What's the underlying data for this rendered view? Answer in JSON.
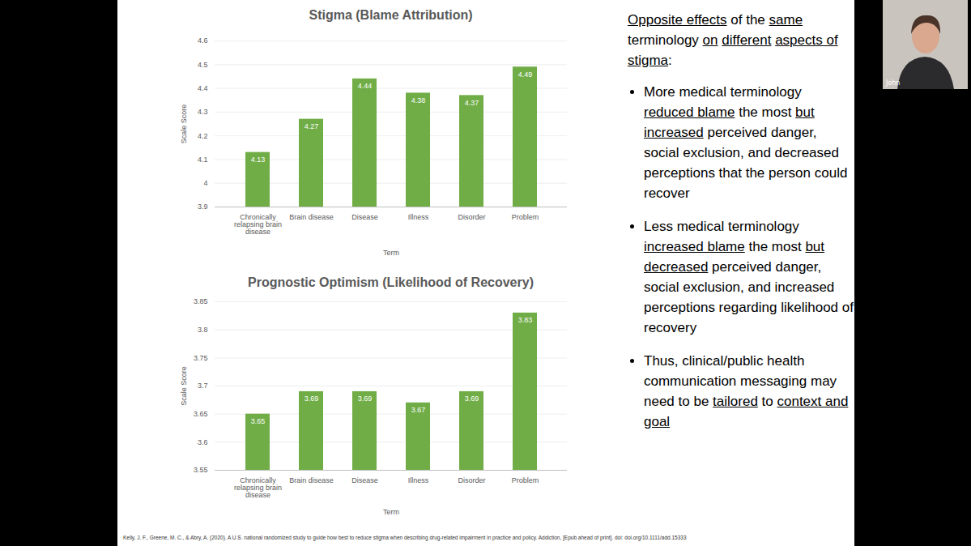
{
  "chart_data": [
    {
      "type": "bar",
      "title": "Stigma (Blame Attribution)",
      "categories": [
        "Chronically relapsing brain disease",
        "Brain disease",
        "Disease",
        "Illness",
        "Disorder",
        "Problem"
      ],
      "values": [
        4.13,
        4.27,
        4.44,
        4.38,
        4.37,
        4.49
      ],
      "color": "#70ad47",
      "ylim": [
        3.9,
        4.6
      ],
      "yticks": [
        3.9,
        4,
        4.1,
        4.2,
        4.3,
        4.4,
        4.5,
        4.6
      ],
      "grid": true,
      "data_labels": true,
      "x_label": "Term",
      "y_label": "Scale Score"
    },
    {
      "type": "bar",
      "title": "Prognostic Optimism (Likelihood of Recovery)",
      "categories": [
        "Chronically relapsing brain disease",
        "Brain disease",
        "Disease",
        "Illness",
        "Disorder",
        "Problem"
      ],
      "values": [
        3.65,
        3.69,
        3.69,
        3.67,
        3.69,
        3.83
      ],
      "color": "#70ad47",
      "ylim": [
        3.55,
        3.85
      ],
      "yticks": [
        3.55,
        3.6,
        3.65,
        3.7,
        3.75,
        3.8,
        3.85
      ],
      "grid": true,
      "data_labels": true,
      "x_label": "Term",
      "y_label": "Scale Score"
    }
  ],
  "text_panel": {
    "heading": {
      "text": "Opposite effects of the same terminology on different aspects of stigma:",
      "underlined": [
        "Opposite effects",
        "same",
        "on",
        "different",
        "aspects of stigma"
      ]
    },
    "bullets": [
      {
        "text": "More medical terminology reduced blame the most but increased perceived danger, social exclusion, and decreased perceptions that the person could recover",
        "underlined": [
          "reduced blame",
          "but increased"
        ]
      },
      {
        "text": "Less medical terminology increased blame the most but decreased perceived danger, social exclusion, and increased perceptions regarding likelihood of recovery",
        "underlined": [
          "increased blame",
          "but decreased"
        ]
      },
      {
        "text": "Thus, clinical/public health communication messaging may need to be tailored to context and goal",
        "underlined": [
          "tailored",
          "context and goal"
        ]
      }
    ]
  },
  "citation": "Kelly, J. F., Greene, M. C., & Abry, A. (2020). A U.S. national randomized study to guide how best to reduce stigma when describing drug-related impairment in practice and policy. Addiction, [Epub ahead of print]. doi: doi.org/10.1111/add.15333",
  "video_tile": {
    "name": "John"
  }
}
